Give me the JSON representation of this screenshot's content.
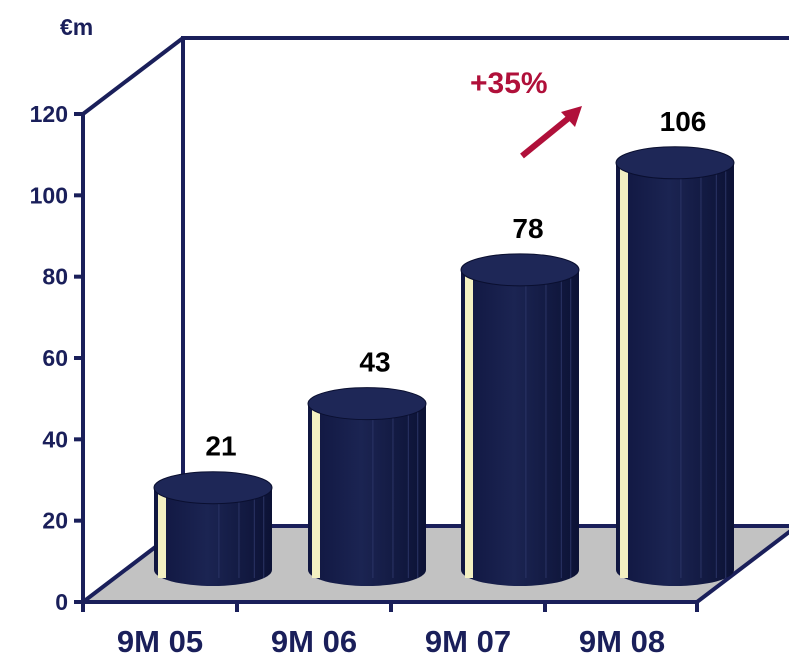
{
  "chart_data": {
    "type": "bar",
    "style": "3d-cylinder",
    "unit": "€m",
    "categories": [
      "9M 05",
      "9M 06",
      "9M 07",
      "9M 08"
    ],
    "values": [
      21,
      43,
      78,
      106
    ],
    "ylim": [
      0,
      120
    ],
    "yticks": [
      0,
      20,
      40,
      60,
      80,
      100,
      120
    ],
    "annotation": {
      "text": "+35%",
      "from_category": "9M 07",
      "to_category": "9M 08"
    },
    "colors": {
      "bar": "#141c46",
      "bar_highlight": "#f3f0c2",
      "floor": "#c2c2c2",
      "axis": "#1a1f5a",
      "annotation": "#b0103a"
    }
  }
}
